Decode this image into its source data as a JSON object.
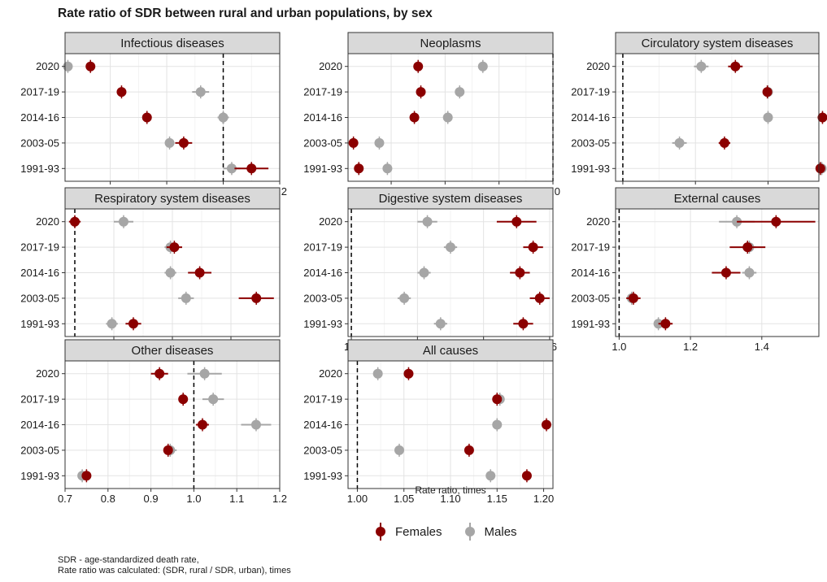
{
  "chart_data": {
    "title": "Rate ratio of SDR between rural and urban populations, by sex",
    "type": "scatter",
    "subtype": "dot plot with error bars, faceted",
    "xlabel": "Rate ratio, times",
    "categories": [
      "2020",
      "2017-19",
      "2014-16",
      "2003-05",
      "1991-93"
    ],
    "reference_line": 1.0,
    "grid": true,
    "legend": {
      "placement": "bottom",
      "entries": [
        {
          "name": "Females",
          "color": "#8b0000"
        },
        {
          "name": "Males",
          "color": "#a6a6a6"
        }
      ]
    },
    "facets": [
      {
        "title": "Infectious diseases",
        "xlim": [
          0.44,
          1.2
        ],
        "xticks": [
          "0.6",
          "0.8",
          "1.0",
          "1.2"
        ],
        "xtick_values": [
          0.6,
          0.8,
          1.0,
          1.2
        ],
        "series": [
          {
            "name": "Females",
            "values": [
              0.53,
              0.64,
              0.73,
              0.86,
              1.1
            ],
            "errors": [
              0.01,
              0.01,
              0.01,
              0.03,
              0.06
            ]
          },
          {
            "name": "Males",
            "values": [
              0.45,
              0.92,
              1.0,
              0.81,
              1.03
            ],
            "errors": [
              0.01,
              0.03,
              0.02,
              0.01,
              0.03
            ]
          }
        ]
      },
      {
        "title": "Neoplasms",
        "xlim": [
          0.62,
          1.0
        ],
        "xticks": [
          "0.7",
          "0.8",
          "0.9",
          "1.0"
        ],
        "xtick_values": [
          0.7,
          0.8,
          0.9,
          1.0
        ],
        "series": [
          {
            "name": "Females",
            "values": [
              0.75,
              0.755,
              0.743,
              0.63,
              0.64
            ],
            "errors": [
              0.004,
              0.004,
              0.004,
              0.004,
              0.004
            ]
          },
          {
            "name": "Males",
            "values": [
              0.87,
              0.827,
              0.805,
              0.678,
              0.693
            ],
            "errors": [
              0.004,
              0.004,
              0.004,
              0.004,
              0.004
            ]
          }
        ]
      },
      {
        "title": "Circulatory system diseases",
        "xlim": [
          0.99,
          1.27
        ],
        "xticks": [
          "1.0",
          "1.1",
          "1.2"
        ],
        "xtick_values": [
          1.0,
          1.1,
          1.2
        ],
        "series": [
          {
            "name": "Females",
            "values": [
              1.155,
              1.199,
              1.275,
              1.14,
              1.272
            ],
            "errors": [
              0.01,
              0.005,
              0.005,
              0.008,
              0.005
            ]
          },
          {
            "name": "Males",
            "values": [
              1.108,
              1.2,
              1.2,
              1.078,
              1.274
            ],
            "errors": [
              0.01,
              0.005,
              0.005,
              0.01,
              0.005
            ]
          }
        ]
      },
      {
        "title": "Respiratory system diseases",
        "xlim": [
          0.95,
          2.05
        ],
        "xticks": [
          "1.2",
          "1.5",
          "1.8"
        ],
        "xtick_values": [
          1.2,
          1.5,
          1.8
        ],
        "series": [
          {
            "name": "Females",
            "values": [
              1.0,
              1.51,
              1.64,
              1.93,
              1.3
            ],
            "errors": [
              0.03,
              0.04,
              0.06,
              0.09,
              0.04
            ]
          },
          {
            "name": "Males",
            "values": [
              1.25,
              1.49,
              1.49,
              1.57,
              1.19
            ],
            "errors": [
              0.05,
              0.03,
              0.03,
              0.04,
              0.03
            ]
          }
        ]
      },
      {
        "title": "Digestive system diseases",
        "xlim": [
          0.99,
          1.61
        ],
        "xticks": [
          "1.0",
          "1.2",
          "1.4",
          "1.6"
        ],
        "xtick_values": [
          1.0,
          1.2,
          1.4,
          1.6
        ],
        "series": [
          {
            "name": "Females",
            "values": [
              1.5,
              1.55,
              1.51,
              1.57,
              1.52
            ],
            "errors": [
              0.06,
              0.03,
              0.03,
              0.03,
              0.03
            ]
          },
          {
            "name": "Males",
            "values": [
              1.23,
              1.3,
              1.22,
              1.16,
              1.27
            ],
            "errors": [
              0.03,
              0.02,
              0.02,
              0.02,
              0.02
            ]
          }
        ]
      },
      {
        "title": "External causes",
        "xlim": [
          0.99,
          1.56
        ],
        "xticks": [
          "1.0",
          "1.2",
          "1.4"
        ],
        "xtick_values": [
          1.0,
          1.2,
          1.4
        ],
        "series": [
          {
            "name": "Females",
            "values": [
              1.44,
              1.36,
              1.3,
              1.04,
              1.13
            ],
            "errors": [
              0.11,
              0.05,
              0.04,
              0.02,
              0.02
            ]
          },
          {
            "name": "Males",
            "values": [
              1.33,
              1.365,
              1.365,
              1.035,
              1.11
            ],
            "errors": [
              0.05,
              0.02,
              0.02,
              0.01,
              0.01
            ]
          }
        ]
      },
      {
        "title": "Other diseases",
        "xlim": [
          0.7,
          1.2
        ],
        "xticks": [
          "0.7",
          "0.8",
          "0.9",
          "1.0",
          "1.1",
          "1.2"
        ],
        "xtick_values": [
          0.7,
          0.8,
          0.9,
          1.0,
          1.1,
          1.2
        ],
        "series": [
          {
            "name": "Females",
            "values": [
              0.92,
              0.975,
              1.02,
              0.94,
              0.75
            ],
            "errors": [
              0.02,
              0.01,
              0.015,
              0.01,
              0.005
            ]
          },
          {
            "name": "Males",
            "values": [
              1.025,
              1.045,
              1.145,
              0.945,
              0.74
            ],
            "errors": [
              0.04,
              0.025,
              0.035,
              0.015,
              0.01
            ]
          }
        ]
      },
      {
        "title": "All causes",
        "xlim": [
          0.99,
          1.21
        ],
        "xticks": [
          "1.00",
          "1.05",
          "1.10",
          "1.15",
          "1.20"
        ],
        "xtick_values": [
          1.0,
          1.05,
          1.1,
          1.15,
          1.2
        ],
        "series": [
          {
            "name": "Females",
            "values": [
              1.055,
              1.15,
              1.203,
              1.12,
              1.182
            ],
            "errors": [
              0.004,
              0.003,
              0.003,
              0.003,
              0.003
            ]
          },
          {
            "name": "Males",
            "values": [
              1.022,
              1.153,
              1.15,
              1.045,
              1.143
            ],
            "errors": [
              0.004,
              0.003,
              0.003,
              0.003,
              0.003
            ]
          }
        ]
      }
    ]
  },
  "notes": [
    "SDR - age-standardized death rate,",
    "Rate ratio was calculated: (SDR, rural / SDR, urban), times"
  ]
}
